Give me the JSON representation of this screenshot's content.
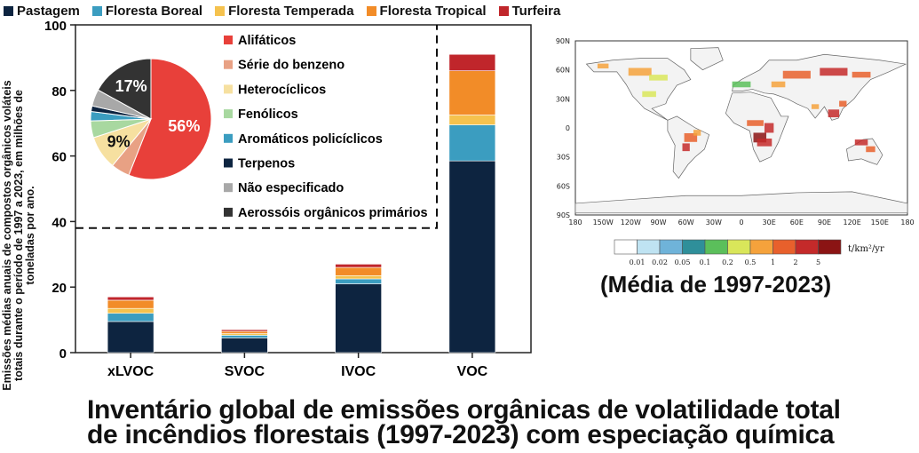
{
  "top_legend": [
    {
      "name": "Pastagem",
      "color": "#0d2440"
    },
    {
      "name": "Floresta Boreal",
      "color": "#3b9dc0"
    },
    {
      "name": "Floresta Temperada",
      "color": "#f5c24e"
    },
    {
      "name": "Floresta Tropical",
      "color": "#f28c28"
    },
    {
      "name": "Turfeira",
      "color": "#c0262b"
    }
  ],
  "chart_data": [
    {
      "type": "bar",
      "stacked": true,
      "categories": [
        "xLVOC",
        "SVOC",
        "IVOC",
        "VOC"
      ],
      "ylabel": "Emissões médias anuais de compostos orgânicos voláteis totais durante o período de 1997 a 2023, em milhões de toneladas por ano.",
      "ylim": [
        0,
        100
      ],
      "yticks": [
        0,
        20,
        40,
        60,
        80,
        100
      ],
      "series": [
        {
          "name": "Pastagem",
          "color": "#0d2440",
          "values": [
            9.5,
            4.5,
            21,
            58.5
          ]
        },
        {
          "name": "Floresta Boreal",
          "color": "#3b9dc0",
          "values": [
            2.5,
            0.8,
            1.5,
            11
          ]
        },
        {
          "name": "Floresta Temperada",
          "color": "#f5c24e",
          "values": [
            1.5,
            0.5,
            1.0,
            3
          ]
        },
        {
          "name": "Floresta Tropical",
          "color": "#f28c28",
          "values": [
            2.5,
            0.7,
            2.5,
            13.5
          ]
        },
        {
          "name": "Turfeira",
          "color": "#c0262b",
          "values": [
            1.0,
            0.5,
            1.0,
            5
          ]
        }
      ]
    },
    {
      "type": "pie",
      "slices": [
        {
          "name": "Alifáticos",
          "value": 56,
          "color": "#e8403a",
          "label": "56%"
        },
        {
          "name": "Série do benzeno",
          "value": 5,
          "color": "#e8a184",
          "label": ""
        },
        {
          "name": "Heterocíclicos",
          "value": 9,
          "color": "#f6e0a0",
          "label": "9%"
        },
        {
          "name": "Fenólicos",
          "value": 4.5,
          "color": "#a8d8a0",
          "label": ""
        },
        {
          "name": "Aromáticos policíclicos",
          "value": 2.5,
          "color": "#3b9dc0",
          "label": ""
        },
        {
          "name": "Terpenos",
          "value": 1.5,
          "color": "#0d2440",
          "label": ""
        },
        {
          "name": "Não especificado",
          "value": 4.5,
          "color": "#a8a8a8",
          "label": ""
        },
        {
          "name": "Aerossóis orgânicos primários",
          "value": 17,
          "color": "#333333",
          "label": "17%"
        }
      ]
    }
  ],
  "map": {
    "lat_labels": [
      "90N",
      "60N",
      "30N",
      "0",
      "30S",
      "60S",
      "90S"
    ],
    "lon_labels": [
      "180",
      "150W",
      "120W",
      "90W",
      "60W",
      "30W",
      "0",
      "30E",
      "60E",
      "90E",
      "120E",
      "150E",
      "180"
    ],
    "colorbar_ticks": [
      "0.01",
      "0.02",
      "0.05",
      "0.1",
      "0.2",
      "0.5",
      "1",
      "2",
      "5"
    ],
    "colorbar_colors": [
      "#ffffff",
      "#bfe3f2",
      "#6fb3d9",
      "#2f8f9a",
      "#5bbf5b",
      "#d9e65a",
      "#f5a23c",
      "#e8602c",
      "#c42a2a",
      "#8b1414"
    ],
    "unit": "t/km²/yr",
    "caption": "(Média de 1997-2023)"
  },
  "title_lines": [
    "Inventário global de emissões orgânicas de volatilidade total",
    "de incêndios florestais (1997-2023) com especiação química"
  ]
}
